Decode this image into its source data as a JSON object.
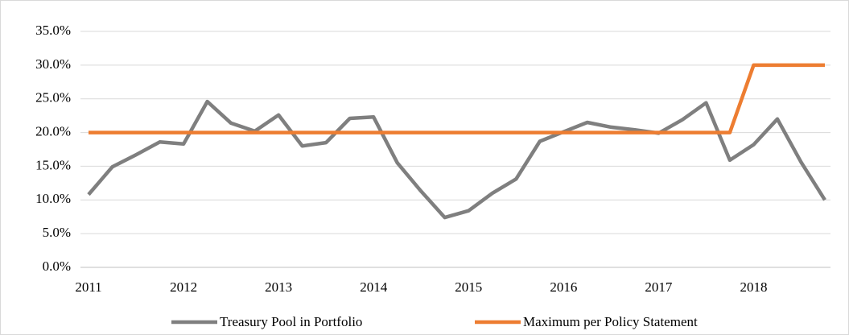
{
  "chart_data": {
    "type": "line",
    "categories": [
      "2011",
      null,
      null,
      null,
      "2012",
      null,
      null,
      null,
      "2013",
      null,
      null,
      null,
      "2014",
      null,
      null,
      null,
      "2015",
      null,
      null,
      null,
      "2016",
      null,
      null,
      null,
      "2017",
      null,
      null,
      null,
      "2018",
      null,
      null,
      null
    ],
    "series": [
      {
        "name": "Treasury Pool in Portfolio",
        "color": "#7f7f7f",
        "values": [
          10.8,
          14.9,
          16.7,
          18.6,
          18.3,
          24.6,
          21.4,
          20.2,
          22.6,
          18.0,
          18.5,
          22.1,
          22.3,
          15.5,
          11.3,
          7.4,
          8.4,
          11.0,
          13.1,
          18.7,
          20.1,
          21.5,
          20.8,
          20.4,
          19.9,
          21.9,
          24.4,
          15.9,
          18.2,
          22.0,
          15.6,
          10.0
        ]
      },
      {
        "name": "Maximum per Policy Statement",
        "color": "#ed7d31",
        "values": [
          20,
          20,
          20,
          20,
          20,
          20,
          20,
          20,
          20,
          20,
          20,
          20,
          20,
          20,
          20,
          20,
          20,
          20,
          20,
          20,
          20,
          20,
          20,
          20,
          20,
          20,
          20,
          20,
          30,
          30,
          30,
          30
        ]
      }
    ],
    "ylim": [
      0,
      35
    ],
    "yticks": [
      {
        "value": 0,
        "label": "0.0%"
      },
      {
        "value": 5,
        "label": "5.0%"
      },
      {
        "value": 10,
        "label": "10.0%"
      },
      {
        "value": 15,
        "label": "15.0%"
      },
      {
        "value": 20,
        "label": "20.0%"
      },
      {
        "value": 25,
        "label": "25.0%"
      },
      {
        "value": 30,
        "label": "30.0%"
      },
      {
        "value": 35,
        "label": "35.0%"
      }
    ],
    "grid": true,
    "legend": "bottom"
  }
}
